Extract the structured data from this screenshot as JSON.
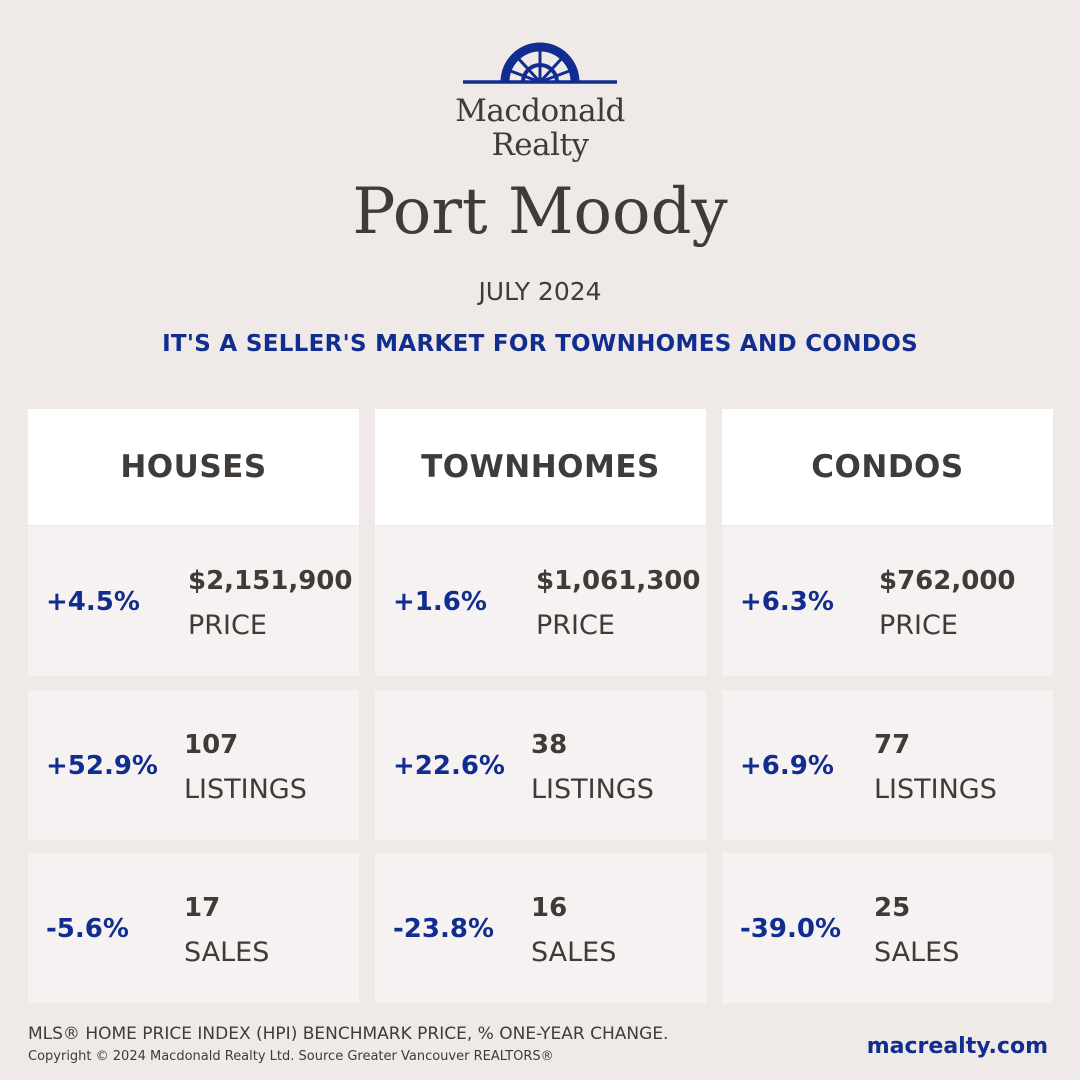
{
  "brand": {
    "name_line1": "Macdonald",
    "name_line2": "Realty",
    "logo_color": "#102d8f"
  },
  "city": "Port Moody",
  "month": "JULY 2024",
  "headline": "IT'S A SELLER'S MARKET FOR TOWNHOMES AND CONDOS",
  "colors": {
    "background": "#efeae7",
    "accent": "#102d8f",
    "text": "#3f3b39"
  },
  "columns": [
    {
      "title": "HOUSES",
      "price": {
        "change": "+4.5%",
        "value": "$2,151,900",
        "label": "PRICE"
      },
      "listings": {
        "change": "+52.9%",
        "value": "107",
        "label": "LISTINGS"
      },
      "sales": {
        "change": "-5.6%",
        "value": "17",
        "label": "SALES"
      }
    },
    {
      "title": "TOWNHOMES",
      "price": {
        "change": "+1.6%",
        "value": "$1,061,300",
        "label": "PRICE"
      },
      "listings": {
        "change": "+22.6%",
        "value": "38",
        "label": "LISTINGS"
      },
      "sales": {
        "change": "-23.8%",
        "value": "16",
        "label": "SALES"
      }
    },
    {
      "title": "CONDOS",
      "price": {
        "change": "+6.3%",
        "value": "$762,000",
        "label": "PRICE"
      },
      "listings": {
        "change": "+6.9%",
        "value": "77",
        "label": "LISTINGS"
      },
      "sales": {
        "change": "-39.0%",
        "value": "25",
        "label": "SALES"
      }
    }
  ],
  "footer": {
    "note": "MLS® HOME PRICE INDEX (HPI) BENCHMARK PRICE, % ONE-YEAR CHANGE.",
    "copyright": "Copyright © 2024 Macdonald Realty Ltd. Source Greater Vancouver REALTORS®",
    "website": "macrealty.com"
  }
}
